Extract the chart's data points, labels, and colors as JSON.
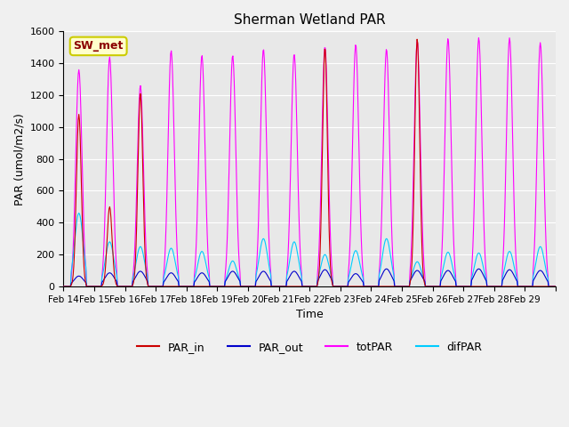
{
  "title": "Sherman Wetland PAR",
  "ylabel": "PAR (umol/m2/s)",
  "xlabel": "Time",
  "annotation": "SW_met",
  "ylim": [
    0,
    1600
  ],
  "colors": {
    "PAR_in": "#cc0000",
    "PAR_out": "#0000cc",
    "totPAR": "#ff00ff",
    "difPAR": "#00ccff"
  },
  "legend_labels": [
    "PAR_in",
    "PAR_out",
    "totPAR",
    "difPAR"
  ],
  "xtick_labels": [
    "Feb 14",
    "Feb 15",
    "Feb 16",
    "Feb 17",
    "Feb 18",
    "Feb 19",
    "Feb 20",
    "Feb 21",
    "Feb 22",
    "Feb 23",
    "Feb 24",
    "Feb 25",
    "Feb 26",
    "Feb 27",
    "Feb 28",
    "Feb 29"
  ],
  "n_days": 16,
  "tot_peak_vals": [
    1360,
    1440,
    1260,
    1480,
    1450,
    1450,
    1490,
    1460,
    1505,
    1520,
    1490,
    1540,
    1555,
    1560,
    1560,
    1530
  ],
  "par_in_peaks": [
    1080,
    500,
    1210,
    0,
    0,
    0,
    0,
    0,
    1500,
    0,
    0,
    1555,
    0,
    0,
    0,
    0
  ],
  "dif_peaks": [
    460,
    280,
    250,
    240,
    220,
    160,
    300,
    280,
    200,
    225,
    300,
    155,
    215,
    210,
    220,
    250
  ],
  "par_out_peaks": [
    65,
    85,
    95,
    85,
    85,
    95,
    95,
    95,
    105,
    80,
    110,
    100,
    100,
    110,
    105,
    100
  ],
  "background_color": "#e8e8e8",
  "fig_background_color": "#f0f0f0"
}
